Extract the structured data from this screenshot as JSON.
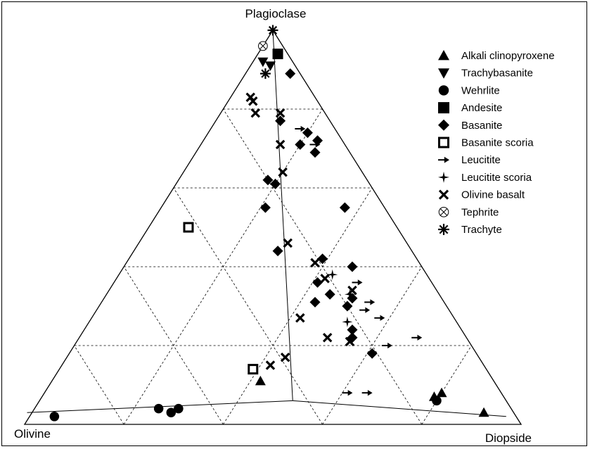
{
  "chart_data": {
    "type": "scatter",
    "diagram": "ternary",
    "apex_labels": {
      "top": "Plagioclase",
      "left": "Olivine",
      "right": "Diopside"
    },
    "grid": true,
    "legend_position": "top-right",
    "series": [
      {
        "name": "Alkali clinopyroxene",
        "marker": "triangle-up",
        "points": [
          {
            "pl": 0.11,
            "ol": 0.47,
            "di": 0.42
          },
          {
            "pl": 0.07,
            "ol": 0.14,
            "di": 0.79
          },
          {
            "pl": 0.08,
            "ol": 0.12,
            "di": 0.8
          },
          {
            "pl": 0.03,
            "ol": 0.06,
            "di": 0.91
          }
        ]
      },
      {
        "name": "Trachybasanite",
        "marker": "triangle-down",
        "points": [
          {
            "pl": 0.92,
            "ol": 0.06,
            "di": 0.02
          },
          {
            "pl": 0.91,
            "ol": 0.05,
            "di": 0.04
          }
        ]
      },
      {
        "name": "Wehrlite",
        "marker": "circle",
        "points": [
          {
            "pl": 0.02,
            "ol": 0.93,
            "di": 0.05
          },
          {
            "pl": 0.04,
            "ol": 0.71,
            "di": 0.25
          },
          {
            "pl": 0.03,
            "ol": 0.69,
            "di": 0.28
          },
          {
            "pl": 0.04,
            "ol": 0.67,
            "di": 0.29
          },
          {
            "pl": 0.06,
            "ol": 0.14,
            "di": 0.8
          }
        ]
      },
      {
        "name": "Andesite",
        "marker": "square",
        "points": [
          {
            "pl": 0.94,
            "ol": 0.02,
            "di": 0.04
          }
        ]
      },
      {
        "name": "Basanite",
        "marker": "diamond",
        "points": [
          {
            "pl": 0.89,
            "ol": 0.02,
            "di": 0.09
          },
          {
            "pl": 0.77,
            "ol": 0.1,
            "di": 0.13
          },
          {
            "pl": 0.74,
            "ol": 0.06,
            "di": 0.2
          },
          {
            "pl": 0.71,
            "ol": 0.09,
            "di": 0.2
          },
          {
            "pl": 0.72,
            "ol": 0.05,
            "di": 0.23
          },
          {
            "pl": 0.69,
            "ol": 0.07,
            "di": 0.24
          },
          {
            "pl": 0.62,
            "ol": 0.2,
            "di": 0.18
          },
          {
            "pl": 0.61,
            "ol": 0.19,
            "di": 0.2
          },
          {
            "pl": 0.55,
            "ol": 0.24,
            "di": 0.21
          },
          {
            "pl": 0.55,
            "ol": 0.08,
            "di": 0.37
          },
          {
            "pl": 0.44,
            "ol": 0.27,
            "di": 0.29
          },
          {
            "pl": 0.42,
            "ol": 0.19,
            "di": 0.39
          },
          {
            "pl": 0.4,
            "ol": 0.14,
            "di": 0.46
          },
          {
            "pl": 0.36,
            "ol": 0.23,
            "di": 0.41
          },
          {
            "pl": 0.33,
            "ol": 0.22,
            "di": 0.45
          },
          {
            "pl": 0.32,
            "ol": 0.18,
            "di": 0.5
          },
          {
            "pl": 0.31,
            "ol": 0.26,
            "di": 0.43
          },
          {
            "pl": 0.3,
            "ol": 0.2,
            "di": 0.5
          },
          {
            "pl": 0.24,
            "ol": 0.22,
            "di": 0.54
          },
          {
            "pl": 0.22,
            "ol": 0.23,
            "di": 0.55
          },
          {
            "pl": 0.18,
            "ol": 0.21,
            "di": 0.61
          }
        ]
      },
      {
        "name": "Basanite scoria",
        "marker": "square-open",
        "points": [
          {
            "pl": 0.5,
            "ol": 0.42,
            "di": 0.08
          },
          {
            "pl": 0.14,
            "ol": 0.47,
            "di": 0.39
          }
        ]
      },
      {
        "name": "Leucitite",
        "marker": "arrow-right",
        "points": [
          {
            "pl": 0.75,
            "ol": 0.07,
            "di": 0.18
          },
          {
            "pl": 0.71,
            "ol": 0.06,
            "di": 0.23
          },
          {
            "pl": 0.36,
            "ol": 0.15,
            "di": 0.49
          },
          {
            "pl": 0.31,
            "ol": 0.15,
            "di": 0.54
          },
          {
            "pl": 0.29,
            "ol": 0.17,
            "di": 0.54
          },
          {
            "pl": 0.27,
            "ol": 0.15,
            "di": 0.58
          },
          {
            "pl": 0.22,
            "ol": 0.1,
            "di": 0.68
          },
          {
            "pl": 0.2,
            "ol": 0.17,
            "di": 0.63
          },
          {
            "pl": 0.08,
            "ol": 0.31,
            "di": 0.61
          },
          {
            "pl": 0.08,
            "ol": 0.27,
            "di": 0.65
          }
        ]
      },
      {
        "name": "Leucitite scoria",
        "marker": "plus",
        "points": [
          {
            "pl": 0.38,
            "ol": 0.19,
            "di": 0.43
          },
          {
            "pl": 0.33,
            "ol": 0.18,
            "di": 0.49
          },
          {
            "pl": 0.26,
            "ol": 0.22,
            "di": 0.52
          }
        ]
      },
      {
        "name": "Olivine basalt",
        "marker": "x",
        "points": [
          {
            "pl": 0.83,
            "ol": 0.13,
            "di": 0.04
          },
          {
            "pl": 0.82,
            "ol": 0.13,
            "di": 0.05
          },
          {
            "pl": 0.79,
            "ol": 0.14,
            "di": 0.07
          },
          {
            "pl": 0.79,
            "ol": 0.09,
            "di": 0.12
          },
          {
            "pl": 0.71,
            "ol": 0.13,
            "di": 0.16
          },
          {
            "pl": 0.64,
            "ol": 0.16,
            "di": 0.2
          },
          {
            "pl": 0.46,
            "ol": 0.24,
            "di": 0.3
          },
          {
            "pl": 0.41,
            "ol": 0.21,
            "di": 0.38
          },
          {
            "pl": 0.37,
            "ol": 0.21,
            "di": 0.42
          },
          {
            "pl": 0.34,
            "ol": 0.17,
            "di": 0.49
          },
          {
            "pl": 0.27,
            "ol": 0.31,
            "di": 0.42
          },
          {
            "pl": 0.22,
            "ol": 0.28,
            "di": 0.5
          },
          {
            "pl": 0.21,
            "ol": 0.24,
            "di": 0.55
          },
          {
            "pl": 0.17,
            "ol": 0.39,
            "di": 0.44
          },
          {
            "pl": 0.15,
            "ol": 0.43,
            "di": 0.42
          }
        ]
      },
      {
        "name": "Tephrite",
        "marker": "circle-x",
        "points": [
          {
            "pl": 0.96,
            "ol": 0.04,
            "di": 0.0
          }
        ]
      },
      {
        "name": "Trachyte",
        "marker": "asterisk",
        "points": [
          {
            "pl": 1.0,
            "ol": 0.0,
            "di": 0.0
          },
          {
            "pl": 0.89,
            "ol": 0.07,
            "di": 0.04
          }
        ]
      }
    ],
    "tie_lines": [
      [
        {
          "pl": 0.06,
          "ol": 0.43,
          "di": 0.51
        },
        {
          "pl": 0.03,
          "ol": 0.98,
          "di": -0.01
        }
      ],
      [
        {
          "pl": 0.06,
          "ol": 0.43,
          "di": 0.51
        },
        {
          "pl": 0.02,
          "ol": 0.02,
          "di": 0.96
        }
      ],
      [
        {
          "pl": 0.06,
          "ol": 0.43,
          "di": 0.51
        },
        {
          "pl": 1.0,
          "ol": 0.0,
          "di": 0.0
        }
      ]
    ]
  }
}
